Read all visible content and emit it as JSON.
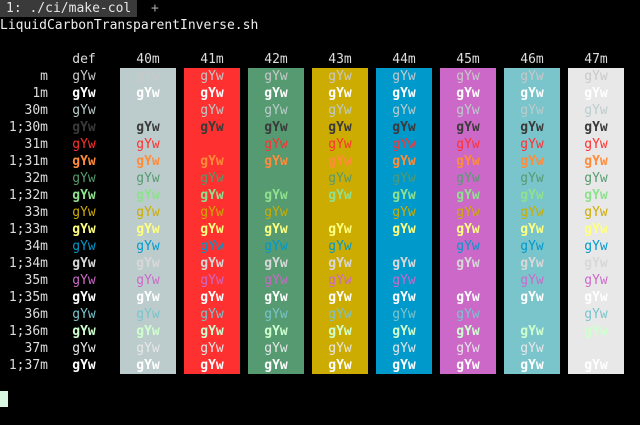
{
  "tabbar": {
    "active_tab": "1: ./ci/make-col",
    "add_label": "+"
  },
  "title": "LiquidCarbonTransparentInverse.sh",
  "columns": [
    {
      "label": "def",
      "bg": null
    },
    {
      "label": "40m",
      "bg": "#bccccc"
    },
    {
      "label": "41m",
      "bg": "#ff3030"
    },
    {
      "label": "42m",
      "bg": "#559a70"
    },
    {
      "label": "43m",
      "bg": "#ccac00"
    },
    {
      "label": "44m",
      "bg": "#0099cc"
    },
    {
      "label": "45m",
      "bg": "#cc69c8"
    },
    {
      "label": "46m",
      "bg": "#7ac4cc"
    },
    {
      "label": "47m",
      "bg": "#e8e8e8"
    }
  ],
  "rows": [
    {
      "label": "m",
      "fg": "#c9c9c9",
      "bold": false
    },
    {
      "label": "1m",
      "fg": "#ffffff",
      "bold": true
    },
    {
      "label": "30m",
      "fg": "#bccccc",
      "bold": false
    },
    {
      "label": "1;30m",
      "fg": "#3a3a3a",
      "bold": true
    },
    {
      "label": "31m",
      "fg": "#ff3030",
      "bold": false
    },
    {
      "label": "1;31m",
      "fg": "#ff8c3a",
      "bold": true
    },
    {
      "label": "32m",
      "fg": "#559a70",
      "bold": false
    },
    {
      "label": "1;32m",
      "fg": "#8fe08f",
      "bold": true
    },
    {
      "label": "33m",
      "fg": "#ccac00",
      "bold": false
    },
    {
      "label": "1;33m",
      "fg": "#ffff80",
      "bold": true
    },
    {
      "label": "34m",
      "fg": "#0099cc",
      "bold": false
    },
    {
      "label": "1;34m",
      "fg": "#d8d8d8",
      "bold": true
    },
    {
      "label": "35m",
      "fg": "#cc69c8",
      "bold": false
    },
    {
      "label": "1;35m",
      "fg": "#ffffff",
      "bold": true
    },
    {
      "label": "36m",
      "fg": "#7ac4cc",
      "bold": false
    },
    {
      "label": "1;36m",
      "fg": "#cfffcf",
      "bold": true
    },
    {
      "label": "37m",
      "fg": "#e8e8e8",
      "bold": false
    },
    {
      "label": "1;37m",
      "fg": "#ffffff",
      "bold": true
    }
  ],
  "sample_text": "gYw",
  "cursor_color": "#d8f7e0"
}
